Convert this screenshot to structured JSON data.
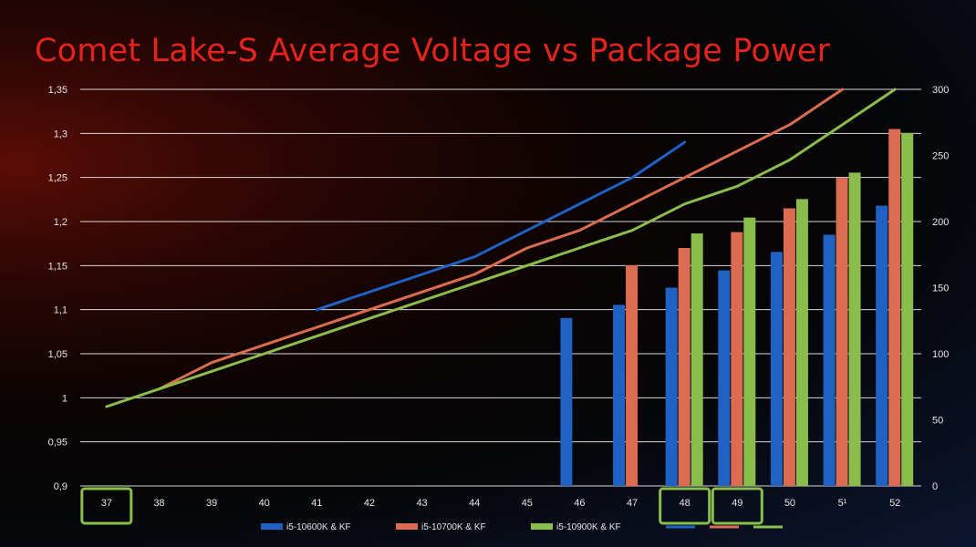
{
  "chart_data": {
    "type": "bar+line",
    "title": "Comet Lake-S Average Voltage vs Package Power",
    "categories": [
      "37",
      "38",
      "39",
      "40",
      "41",
      "42",
      "43",
      "44",
      "45",
      "46",
      "47",
      "48",
      "49",
      "50",
      "5¹",
      "52"
    ],
    "highlighted_categories": [
      "37",
      "48",
      "49"
    ],
    "y_left": {
      "range": [
        0.9,
        1.35
      ],
      "ticks": [
        "0,9",
        "0,95",
        "1",
        "1,05",
        "1,1",
        "1,15",
        "1,2",
        "1,25",
        "1,3",
        "1,35"
      ]
    },
    "y_right": {
      "range": [
        0,
        300
      ],
      "ticks": [
        "0",
        "50",
        "100",
        "150",
        "200",
        "250",
        "300"
      ]
    },
    "bar_series": [
      {
        "name": "i5-10600K & KF",
        "color": "#1f62c4",
        "values": [
          null,
          null,
          null,
          null,
          null,
          null,
          null,
          null,
          null,
          127,
          137,
          150,
          163,
          177,
          190,
          212
        ]
      },
      {
        "name": "i5-10700K & KF",
        "color": "#db6c52",
        "values": [
          null,
          null,
          null,
          null,
          null,
          null,
          null,
          null,
          null,
          null,
          167,
          180,
          192,
          210,
          233,
          270
        ]
      },
      {
        "name": "i5-10900K & KF",
        "color": "#8bbd4c",
        "values": [
          null,
          null,
          null,
          null,
          null,
          null,
          null,
          null,
          null,
          null,
          null,
          191,
          203,
          217,
          237,
          267
        ]
      }
    ],
    "line_series": [
      {
        "color": "#1f62c4",
        "values": [
          null,
          null,
          null,
          null,
          1.1,
          1.12,
          1.14,
          1.16,
          1.19,
          1.22,
          1.25,
          1.29,
          null,
          null,
          null,
          null
        ]
      },
      {
        "color": "#db6c52",
        "values": [
          null,
          1.01,
          1.04,
          1.06,
          1.08,
          1.1,
          1.12,
          1.14,
          1.17,
          1.19,
          1.22,
          1.25,
          1.28,
          1.31,
          1.35,
          null
        ]
      },
      {
        "color": "#8bbd4c",
        "values": [
          0.99,
          1.01,
          1.03,
          1.05,
          1.07,
          1.09,
          1.11,
          1.13,
          1.15,
          1.17,
          1.19,
          1.22,
          1.24,
          1.27,
          1.31,
          1.35
        ]
      }
    ],
    "grid": true,
    "legend": "bottom"
  }
}
